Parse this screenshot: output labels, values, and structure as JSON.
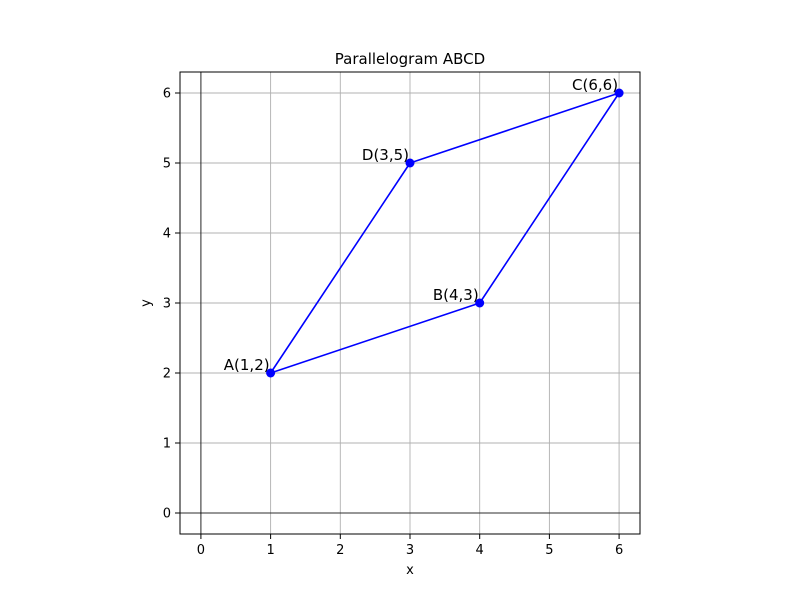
{
  "chart_data": {
    "type": "line",
    "title": "Parallelogram ABCD",
    "xlabel": "x",
    "ylabel": "y",
    "xlim": [
      -0.3,
      6.3
    ],
    "ylim": [
      -0.3,
      6.3
    ],
    "xticks": [
      0,
      1,
      2,
      3,
      4,
      5,
      6
    ],
    "yticks": [
      0,
      1,
      2,
      3,
      4,
      5,
      6
    ],
    "xtick_labels": [
      "0",
      "1",
      "2",
      "3",
      "4",
      "5",
      "6"
    ],
    "ytick_labels": [
      "0",
      "1",
      "2",
      "3",
      "4",
      "5",
      "6"
    ],
    "grid": true,
    "aspect": "equal",
    "axis_lines_at_zero": true,
    "series": [
      {
        "closed": true,
        "color": "#0000ff",
        "marker": "circle",
        "points": [
          {
            "name": "A",
            "x": 1,
            "y": 2,
            "label": "A(1,2)"
          },
          {
            "name": "B",
            "x": 4,
            "y": 3,
            "label": "B(4,3)"
          },
          {
            "name": "C",
            "x": 6,
            "y": 6,
            "label": "C(6,6)"
          },
          {
            "name": "D",
            "x": 3,
            "y": 5,
            "label": "D(3,5)"
          }
        ]
      }
    ],
    "colors": {
      "line": "#0000ff",
      "grid": "#b0b0b0",
      "axes": "#000000"
    }
  }
}
